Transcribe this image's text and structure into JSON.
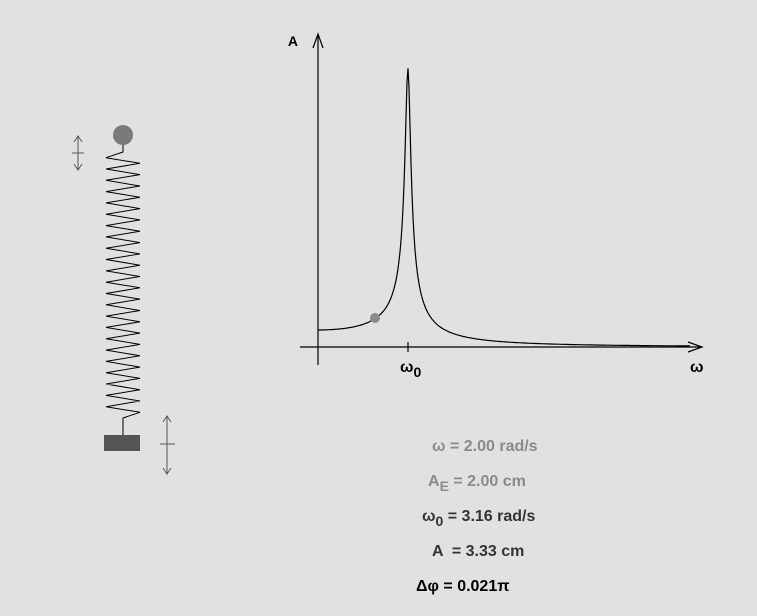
{
  "graph": {
    "y_axis_label": "A",
    "x_axis_label": "ω",
    "marker_label": {
      "symbol": "ω",
      "subscript": "0"
    }
  },
  "readouts": [
    {
      "symbol": "ω",
      "text": " = 2.00 rad/s"
    },
    {
      "symbol": "A",
      "subscript": "E",
      "text": " = 2.00 cm"
    },
    {
      "symbol": "ω",
      "subscript": "0",
      "text": " = 3.16 rad/s"
    },
    {
      "symbol": "A",
      "text": "  = 3.33 cm"
    },
    {
      "symbol": "Δφ",
      "text": " = 0.021π"
    }
  ]
}
